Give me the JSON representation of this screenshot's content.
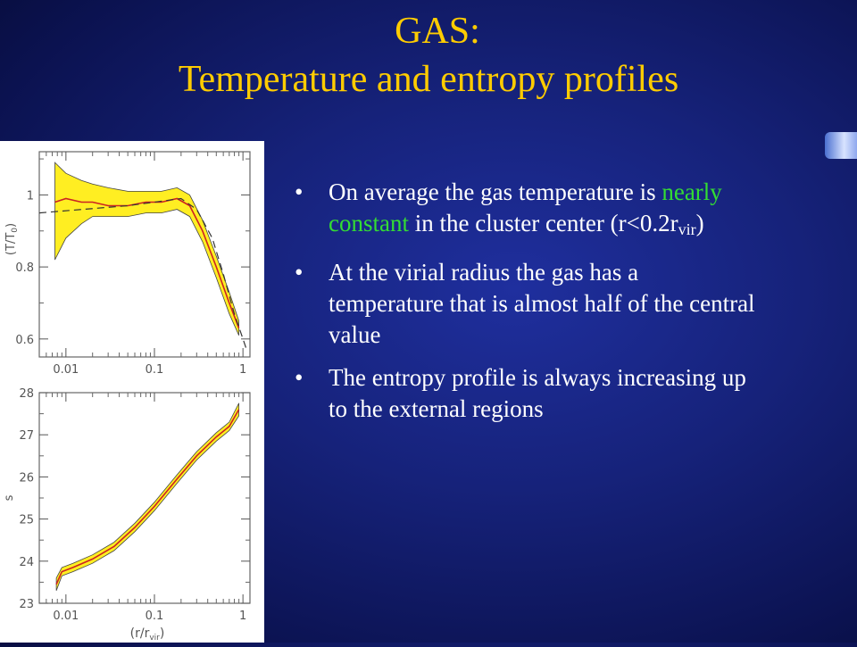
{
  "slide": {
    "title_line1": "GAS:",
    "title_line2": "Temperature and entropy profiles",
    "bullets": [
      {
        "bullet_char": "•",
        "pre": "On average the gas temperature is ",
        "highlight": "nearly constant",
        "post": " in the cluster center (r<0.2r",
        "sub": "vir",
        "end": ")"
      },
      {
        "bullet_char": "•",
        "text": "At the virial radius the gas has a temperature that is almost  half of the central value"
      },
      {
        "bullet_char": "•",
        "text": "The entropy profile is always increasing up to the external regions"
      }
    ],
    "colors": {
      "title": "#ffcc00",
      "text": "#ffffff",
      "highlight": "#33dd33",
      "background": "#16227a",
      "band": "#ffee22",
      "curve": "#cc2222"
    }
  },
  "chart_data": [
    {
      "type": "line",
      "ylabel_main": "(T/T",
      "ylabel_sub": "0",
      "ylabel_end": ")",
      "xscale": "log",
      "xlim": [
        0.005,
        1.2
      ],
      "ylim": [
        0.55,
        1.12
      ],
      "xticks": [
        {
          "v": 0.01,
          "label": "0.01"
        },
        {
          "v": 0.1,
          "label": "0.1"
        },
        {
          "v": 1,
          "label": "1"
        }
      ],
      "yticks": [
        {
          "v": 1,
          "label": "1"
        },
        {
          "v": 0.8,
          "label": "0.8"
        },
        {
          "v": 0.6,
          "label": "0.6"
        }
      ],
      "series": [
        {
          "role": "mean",
          "x": [
            0.0075,
            0.01,
            0.015,
            0.02,
            0.03,
            0.05,
            0.08,
            0.12,
            0.18,
            0.25,
            0.35,
            0.5,
            0.7,
            0.9
          ],
          "y": [
            0.98,
            0.99,
            0.98,
            0.98,
            0.97,
            0.97,
            0.98,
            0.98,
            0.99,
            0.97,
            0.9,
            0.8,
            0.7,
            0.63
          ]
        },
        {
          "role": "upper",
          "x": [
            0.0075,
            0.01,
            0.015,
            0.02,
            0.03,
            0.05,
            0.08,
            0.12,
            0.18,
            0.25,
            0.35,
            0.5,
            0.7,
            0.9
          ],
          "y": [
            1.09,
            1.06,
            1.04,
            1.03,
            1.02,
            1.01,
            1.01,
            1.01,
            1.02,
            1.0,
            0.93,
            0.83,
            0.73,
            0.65
          ]
        },
        {
          "role": "lower",
          "x": [
            0.0075,
            0.01,
            0.015,
            0.02,
            0.03,
            0.05,
            0.08,
            0.12,
            0.18,
            0.25,
            0.35,
            0.5,
            0.7,
            0.9
          ],
          "y": [
            0.82,
            0.88,
            0.92,
            0.94,
            0.94,
            0.94,
            0.95,
            0.95,
            0.96,
            0.94,
            0.87,
            0.77,
            0.67,
            0.61
          ]
        },
        {
          "role": "fit",
          "x": [
            0.005,
            0.05,
            0.1,
            0.2,
            0.3,
            0.45,
            0.6,
            0.8,
            1.1
          ],
          "y": [
            0.95,
            0.97,
            0.98,
            0.99,
            0.96,
            0.88,
            0.78,
            0.67,
            0.57
          ]
        }
      ]
    },
    {
      "type": "line",
      "ylabel": "s",
      "xlabel_main": "(r/r",
      "xlabel_sub": "vir",
      "xlabel_end": ")",
      "xscale": "log",
      "xlim": [
        0.005,
        1.2
      ],
      "ylim": [
        23,
        28
      ],
      "xticks": [
        {
          "v": 0.01,
          "label": "0.01"
        },
        {
          "v": 0.1,
          "label": "0.1"
        },
        {
          "v": 1,
          "label": "1"
        }
      ],
      "yticks": [
        {
          "v": 28,
          "label": "28"
        },
        {
          "v": 27,
          "label": "27"
        },
        {
          "v": 26,
          "label": "26"
        },
        {
          "v": 25,
          "label": "25"
        },
        {
          "v": 24,
          "label": "24"
        },
        {
          "v": 23,
          "label": "23"
        }
      ],
      "series": [
        {
          "role": "mean",
          "x": [
            0.0078,
            0.009,
            0.012,
            0.02,
            0.035,
            0.06,
            0.1,
            0.18,
            0.3,
            0.5,
            0.7,
            0.9
          ],
          "y": [
            23.45,
            23.75,
            23.85,
            24.05,
            24.35,
            24.8,
            25.3,
            25.95,
            26.5,
            26.95,
            27.2,
            27.6
          ]
        },
        {
          "role": "upper",
          "x": [
            0.0078,
            0.009,
            0.012,
            0.02,
            0.035,
            0.06,
            0.1,
            0.18,
            0.3,
            0.5,
            0.7,
            0.9
          ],
          "y": [
            23.6,
            23.85,
            23.95,
            24.15,
            24.45,
            24.9,
            25.4,
            26.05,
            26.6,
            27.05,
            27.3,
            27.75
          ]
        },
        {
          "role": "lower",
          "x": [
            0.0078,
            0.009,
            0.012,
            0.02,
            0.035,
            0.06,
            0.1,
            0.18,
            0.3,
            0.5,
            0.7,
            0.9
          ],
          "y": [
            23.3,
            23.65,
            23.75,
            23.95,
            24.25,
            24.7,
            25.2,
            25.85,
            26.4,
            26.85,
            27.1,
            27.45
          ]
        }
      ]
    }
  ]
}
